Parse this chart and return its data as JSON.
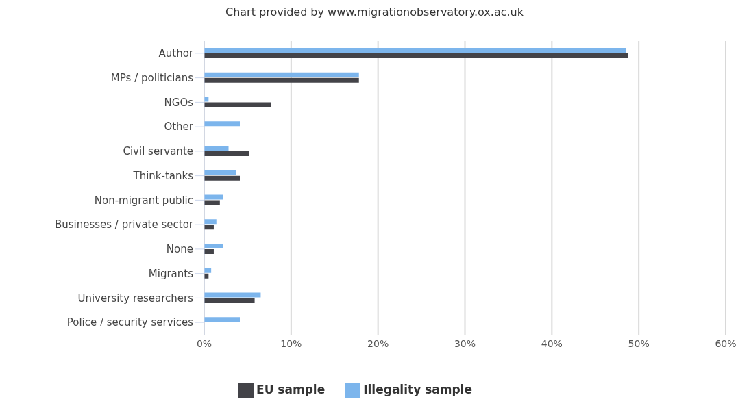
{
  "chart_data": {
    "type": "bar",
    "orientation": "horizontal",
    "title": "Chart provided by www.migrationobservatory.ox.ac.uk",
    "categories": [
      "Author",
      "MPs / politicians",
      "NGOs",
      "Other",
      "Civil servante",
      "Think-tanks",
      "Non-migrant public",
      "Businesses / private sector",
      "None",
      "Migrants",
      "University researchers",
      "Police / security services"
    ],
    "series": [
      {
        "name": "Illegality sample",
        "color": "#7cb5ec",
        "values": [
          48.5,
          17.8,
          0.5,
          4.1,
          2.8,
          3.7,
          2.2,
          1.4,
          2.2,
          0.8,
          6.5,
          4.1
        ]
      },
      {
        "name": "EU sample",
        "color": "#434348",
        "values": [
          48.8,
          17.8,
          7.7,
          null,
          5.2,
          4.1,
          1.8,
          1.1,
          1.1,
          0.5,
          5.8,
          null
        ]
      }
    ],
    "xlim": [
      0,
      60
    ],
    "xticks": [
      {
        "value": 0,
        "label": "0%"
      },
      {
        "value": 10,
        "label": "10%"
      },
      {
        "value": 20,
        "label": "20%"
      },
      {
        "value": 30,
        "label": "30%"
      },
      {
        "value": 40,
        "label": "40%"
      },
      {
        "value": 50,
        "label": "50%"
      },
      {
        "value": 60,
        "label": "60%"
      }
    ],
    "grid": "x",
    "legend": "bottom"
  }
}
